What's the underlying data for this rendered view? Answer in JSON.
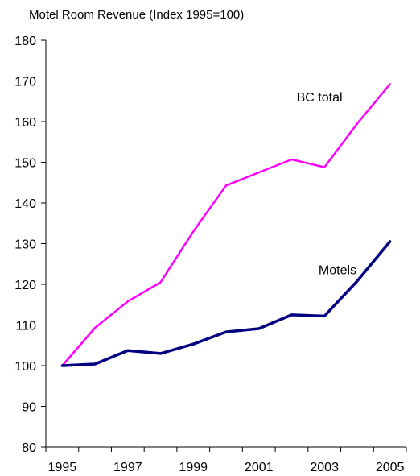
{
  "chart_data": {
    "type": "line",
    "title": "Motel Room Revenue (Index 1995=100)",
    "xlabel": "",
    "ylabel": "",
    "x": [
      1995,
      1996,
      1997,
      1998,
      1999,
      2000,
      2001,
      2002,
      2003,
      2004,
      2005
    ],
    "x_tick_labels": [
      "1995",
      "1997",
      "1999",
      "2001",
      "2003",
      "2005"
    ],
    "y_ticks": [
      80,
      90,
      100,
      110,
      120,
      130,
      140,
      150,
      160,
      170,
      180
    ],
    "ylim": [
      80,
      180
    ],
    "grid": false,
    "legend": "none (series labeled inline)",
    "series": [
      {
        "name": "BC total",
        "color": "#ff00ff",
        "values": [
          100,
          109.3,
          115.8,
          120.5,
          133,
          144.3,
          147.5,
          150.7,
          148.8,
          159.5,
          169.2
        ]
      },
      {
        "name": "Motels",
        "color": "#000080",
        "values": [
          100,
          100.4,
          103.7,
          103,
          105.3,
          108.3,
          109.1,
          112.5,
          112.2,
          120.8,
          130.5
        ]
      }
    ]
  }
}
